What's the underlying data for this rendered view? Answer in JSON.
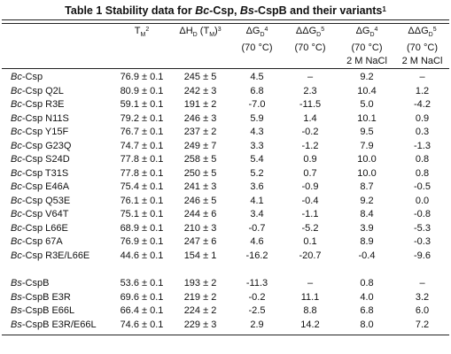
{
  "title": {
    "prefix": "Table 1 Stability data for ",
    "org1": "Bc",
    "mid1": "-Csp, ",
    "org2": "Bs",
    "mid2": "-CspB and their variants",
    "footnote": "1"
  },
  "headers": {
    "tm": "T",
    "tm_sub": "M",
    "tm_sup": "2",
    "dh": "ΔH",
    "dh_sub": "D",
    "dh_paren": "(T",
    "dh_paren_sub": "M",
    "dh_paren_close": ")",
    "dh_sup": "3",
    "dg": "ΔG",
    "dg_sub": "D",
    "dg_sup": "4",
    "ddg": "ΔΔG",
    "ddg_sub": "D",
    "ddg_sup": "5",
    "temp": "(70 °C)",
    "salt": "2 M NaCl"
  },
  "rows": [
    {
      "org": "Bc",
      "name": "-Csp",
      "tm": "76.9 ± 0.1",
      "dh": "245 ± 5",
      "dg": "4.5",
      "ddg": "–",
      "dg_nacl": "9.2",
      "ddg_nacl": "–"
    },
    {
      "org": "Bc",
      "name": "-Csp Q2L",
      "tm": "80.9 ± 0.1",
      "dh": "242 ± 3",
      "dg": "6.8",
      "ddg": "2.3",
      "dg_nacl": "10.4",
      "ddg_nacl": "1.2"
    },
    {
      "org": "Bc",
      "name": "-Csp R3E",
      "tm": "59.1 ± 0.1",
      "dh": "191 ± 2",
      "dg": "-7.0",
      "ddg": "-11.5",
      "dg_nacl": "5.0",
      "ddg_nacl": "-4.2"
    },
    {
      "org": "Bc",
      "name": "-Csp N11S",
      "tm": "79.2 ± 0.1",
      "dh": "246 ± 3",
      "dg": "5.9",
      "ddg": "1.4",
      "dg_nacl": "10.1",
      "ddg_nacl": "0.9"
    },
    {
      "org": "Bc",
      "name": "-Csp Y15F",
      "tm": "76.7 ± 0.1",
      "dh": "237 ± 2",
      "dg": "4.3",
      "ddg": "-0.2",
      "dg_nacl": "9.5",
      "ddg_nacl": "0.3"
    },
    {
      "org": "Bc",
      "name": "-Csp G23Q",
      "tm": "74.7 ± 0.1",
      "dh": "249 ± 7",
      "dg": "3.3",
      "ddg": "-1.2",
      "dg_nacl": "7.9",
      "ddg_nacl": "-1.3"
    },
    {
      "org": "Bc",
      "name": "-Csp S24D",
      "tm": "77.8 ± 0.1",
      "dh": "258 ± 5",
      "dg": "5.4",
      "ddg": "0.9",
      "dg_nacl": "10.0",
      "ddg_nacl": "0.8"
    },
    {
      "org": "Bc",
      "name": "-Csp T31S",
      "tm": "77.8 ± 0.1",
      "dh": "250 ± 5",
      "dg": "5.2",
      "ddg": "0.7",
      "dg_nacl": "10.0",
      "ddg_nacl": "0.8"
    },
    {
      "org": "Bc",
      "name": "-Csp E46A",
      "tm": "75.4 ± 0.1",
      "dh": "241 ± 3",
      "dg": "3.6",
      "ddg": "-0.9",
      "dg_nacl": "8.7",
      "ddg_nacl": "-0.5"
    },
    {
      "org": "Bc",
      "name": "-Csp Q53E",
      "tm": "76.1 ± 0.1",
      "dh": "246 ± 5",
      "dg": "4.1",
      "ddg": "-0.4",
      "dg_nacl": "9.2",
      "ddg_nacl": "0.0"
    },
    {
      "org": "Bc",
      "name": "-Csp V64T",
      "tm": "75.1 ± 0.1",
      "dh": "244 ± 6",
      "dg": "3.4",
      "ddg": "-1.1",
      "dg_nacl": "8.4",
      "ddg_nacl": "-0.8"
    },
    {
      "org": "Bc",
      "name": "-Csp L66E",
      "tm": "68.9 ± 0.1",
      "dh": "210 ± 3",
      "dg": "-0.7",
      "ddg": "-5.2",
      "dg_nacl": "3.9",
      "ddg_nacl": "-5.3"
    },
    {
      "org": "Bc",
      "name": "-Csp 67A",
      "tm": "76.9 ± 0.1",
      "dh": "247 ± 6",
      "dg": "4.6",
      "ddg": "0.1",
      "dg_nacl": "8.9",
      "ddg_nacl": "-0.3"
    },
    {
      "org": "Bc",
      "name": "-Csp R3E/L66E",
      "tm": "44.6 ± 0.1",
      "dh": "154 ± 1",
      "dg": "-16.2",
      "ddg": "-20.7",
      "dg_nacl": "-0.4",
      "ddg_nacl": "-9.6"
    },
    {
      "org": "Bs",
      "name": "-CspB",
      "tm": "53.6 ± 0.1",
      "dh": "193 ± 2",
      "dg": "-11.3",
      "ddg": "–",
      "dg_nacl": "0.8",
      "ddg_nacl": "–"
    },
    {
      "org": "Bs",
      "name": "-CspB E3R",
      "tm": "69.6 ± 0.1",
      "dh": "219 ± 2",
      "dg": "-0.2",
      "ddg": "11.1",
      "dg_nacl": "4.0",
      "ddg_nacl": "3.2"
    },
    {
      "org": "Bs",
      "name": "-CspB E66L",
      "tm": "66.4 ± 0.1",
      "dh": "224 ± 2",
      "dg": "-2.5",
      "ddg": "8.8",
      "dg_nacl": "6.8",
      "ddg_nacl": "6.0"
    },
    {
      "org": "Bs",
      "name": "-CspB E3R/E66L",
      "tm": "74.6 ± 0.1",
      "dh": "229 ± 3",
      "dg": "2.9",
      "ddg": "14.2",
      "dg_nacl": "8.0",
      "ddg_nacl": "7.2"
    }
  ]
}
